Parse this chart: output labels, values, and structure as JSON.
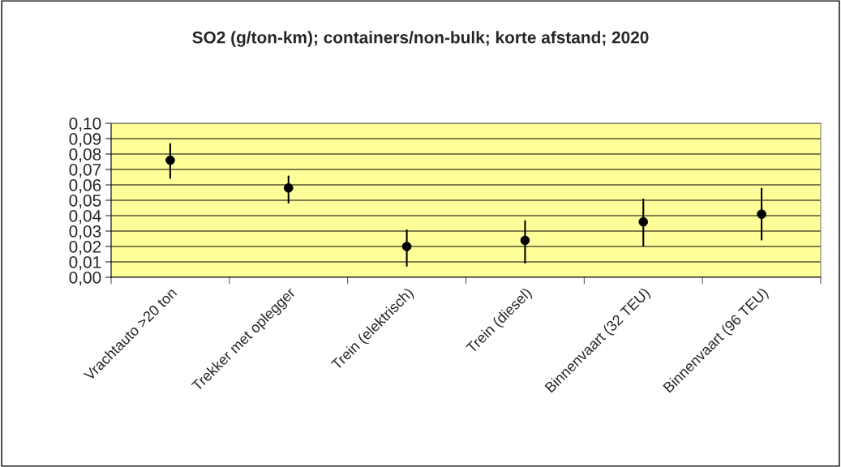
{
  "chart_data": {
    "type": "scatter",
    "title": "SO2 (g/ton-km); containers/non-bulk; korte afstand; 2020",
    "categories": [
      "Vrachtauto >20 ton",
      "Trekker met oplegger",
      "Trein (elektrisch)",
      "Trein (diesel)",
      "Binnenvaart (32 TEU)",
      "Binnenvaart (96 TEU)"
    ],
    "series": [
      {
        "color": "#000000",
        "values": [
          0.076,
          0.058,
          0.02,
          0.024,
          0.036,
          0.041
        ],
        "errors": [
          [
            0.064,
            0.087
          ],
          [
            0.048,
            0.066
          ],
          [
            0.007,
            0.031
          ],
          [
            0.009,
            0.037
          ],
          [
            0.02,
            0.051
          ],
          [
            0.024,
            0.058
          ]
        ]
      }
    ],
    "ylim": [
      0,
      0.1
    ],
    "yticks": [
      {
        "value": 0,
        "label": "0,00"
      },
      {
        "value": 0.01,
        "label": "0,01"
      },
      {
        "value": 0.02,
        "label": "0,02"
      },
      {
        "value": 0.03,
        "label": "0,03"
      },
      {
        "value": 0.04,
        "label": "0,04"
      },
      {
        "value": 0.05,
        "label": "0,05"
      },
      {
        "value": 0.06,
        "label": "0,06"
      },
      {
        "value": 0.07,
        "label": "0,07"
      },
      {
        "value": 0.08,
        "label": "0,08"
      },
      {
        "value": 0.09,
        "label": "0,09"
      },
      {
        "value": 0.1,
        "label": "0,10"
      }
    ],
    "grid": "y",
    "marker": "circle"
  }
}
